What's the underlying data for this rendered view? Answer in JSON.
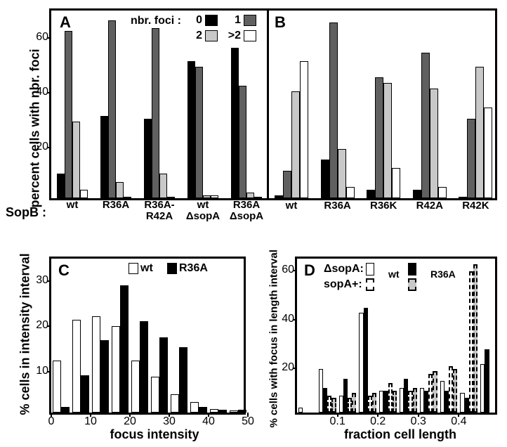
{
  "colors": {
    "black": "#000000",
    "dark_gray": "#606060",
    "light_gray": "#c8c8c8",
    "white": "#ffffff"
  },
  "panel_labels": {
    "A": "A",
    "B": "B",
    "C": "C",
    "D": "D"
  },
  "panelA": {
    "ylabel": "percent cells with nbr. foci",
    "ymax": 70,
    "yticks": [
      20,
      40,
      60
    ],
    "legend_title": "nbr. foci :",
    "legend_items": [
      {
        "label": "0",
        "color": "#000000"
      },
      {
        "label": "1",
        "color": "#606060"
      },
      {
        "label": "2",
        "color": "#c8c8c8"
      },
      {
        "label": ">2",
        "color": "#ffffff"
      }
    ],
    "xlabel_prefix": "SopB :",
    "groups": [
      {
        "label": "wt",
        "values": [
          9,
          61,
          28,
          3
        ]
      },
      {
        "label": "R36A",
        "values": [
          30,
          65,
          6,
          0.5
        ]
      },
      {
        "label": "R36A-\nR42A",
        "values": [
          29,
          62,
          9,
          0.5
        ]
      },
      {
        "label": "wt\nΔsopA",
        "values": [
          50,
          48,
          1,
          1
        ]
      },
      {
        "label": "R36A\nΔsopA",
        "values": [
          55,
          41,
          2,
          0
        ]
      }
    ]
  },
  "panelB": {
    "ymax": 70,
    "groups": [
      {
        "label": "wt",
        "values": [
          1,
          10,
          39,
          50
        ]
      },
      {
        "label": "R36A",
        "values": [
          14,
          64,
          18,
          4
        ]
      },
      {
        "label": "R36K",
        "values": [
          3,
          44,
          42,
          11
        ]
      },
      {
        "label": "R42A",
        "values": [
          3,
          53,
          40,
          4
        ]
      },
      {
        "label": "R42K",
        "values": [
          0,
          29,
          48,
          33
        ]
      }
    ]
  },
  "panelC": {
    "ylabel": "% cells in intensity interval",
    "xlabel": "focus intensity",
    "ymax": 35,
    "yticks": [
      10,
      20,
      30
    ],
    "xticks": [
      0,
      10,
      20,
      30,
      40,
      50
    ],
    "legend": [
      {
        "label": "wt",
        "color": "#ffffff"
      },
      {
        "label": "R36A",
        "color": "#000000"
      }
    ],
    "bins_x": [
      2.5,
      7.5,
      12.5,
      17.5,
      22.5,
      27.5,
      32.5,
      37.5,
      42.5,
      47.5
    ],
    "series": {
      "wt": [
        11.5,
        20.5,
        21.3,
        19.2,
        11.5,
        8.0,
        4.0,
        2.4,
        0.8,
        0.5
      ],
      "R36A": [
        1.2,
        8.2,
        16.0,
        28.2,
        20.2,
        16.7,
        14.5,
        1.2,
        0.6,
        0.6
      ]
    }
  },
  "panelD": {
    "ylabel": "% cells with focus in length interval",
    "xlabel": "fraction cell length",
    "ymax": 65,
    "yticks": [
      20,
      40,
      60
    ],
    "xticks": [
      0.1,
      0.2,
      0.3,
      0.4
    ],
    "xticks_str": [
      "0.1",
      "0.2",
      "0.3",
      "0.4"
    ],
    "legend_label": {
      "dsopA": "ΔsopA:",
      "sopA": "sopA+:",
      "wt": "wt",
      "R36A": "R36A"
    },
    "bins": [
      0.025,
      0.075,
      0.125,
      0.175,
      0.225,
      0.275,
      0.325,
      0.375,
      0.425,
      0.475
    ],
    "series": {
      "dsopA_wt": [
        2,
        18,
        7,
        41,
        9,
        10,
        10,
        13,
        8,
        20
      ],
      "dsopA_R36A": [
        0,
        10,
        14,
        43,
        9,
        14,
        9,
        9,
        6,
        26
      ],
      "sopA_wt": [
        0,
        7,
        6,
        7,
        12,
        9,
        16,
        19,
        58,
        0
      ],
      "sopA_R36A": [
        0,
        6,
        8,
        8,
        9,
        10,
        17,
        18,
        61,
        0
      ]
    },
    "max_x": 0.5
  }
}
